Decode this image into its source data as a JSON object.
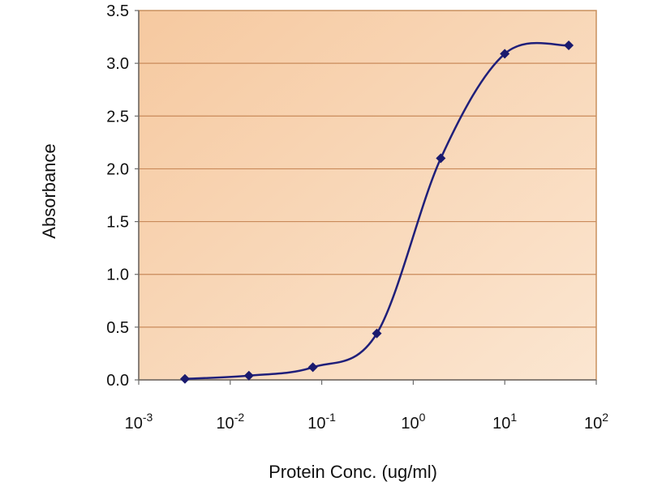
{
  "chart_data": {
    "type": "line",
    "title": "",
    "xlabel": "Protein Conc. (ug/ml)",
    "ylabel": "Absorbance",
    "x_scale": "log",
    "xlim": [
      0.001,
      100
    ],
    "ylim": [
      0,
      3.5
    ],
    "grid": "horizontal",
    "legend": "none",
    "x_ticks": [
      {
        "base": "10",
        "exp": "-3"
      },
      {
        "base": "10",
        "exp": "-2"
      },
      {
        "base": "10",
        "exp": "-1"
      },
      {
        "base": "10",
        "exp": "0"
      },
      {
        "base": "10",
        "exp": "1"
      },
      {
        "base": "10",
        "exp": "2"
      }
    ],
    "y_ticks": [
      "0.0",
      "0.5",
      "1.0",
      "1.5",
      "2.0",
      "2.5",
      "3.0",
      "3.5"
    ],
    "series": [
      {
        "x": [
          0.0032,
          0.016,
          0.08,
          0.4,
          2,
          10,
          50
        ],
        "y": [
          0.01,
          0.04,
          0.12,
          0.44,
          2.1,
          3.09,
          3.17
        ]
      }
    ],
    "colors": {
      "line": "#1f1f7a",
      "marker": "#1a1a6e",
      "plot_bg_light": "#fbe3c9",
      "plot_bg_dark": "#f4b98a",
      "grid": "#c98a5a",
      "frame": "#c9905e"
    }
  }
}
